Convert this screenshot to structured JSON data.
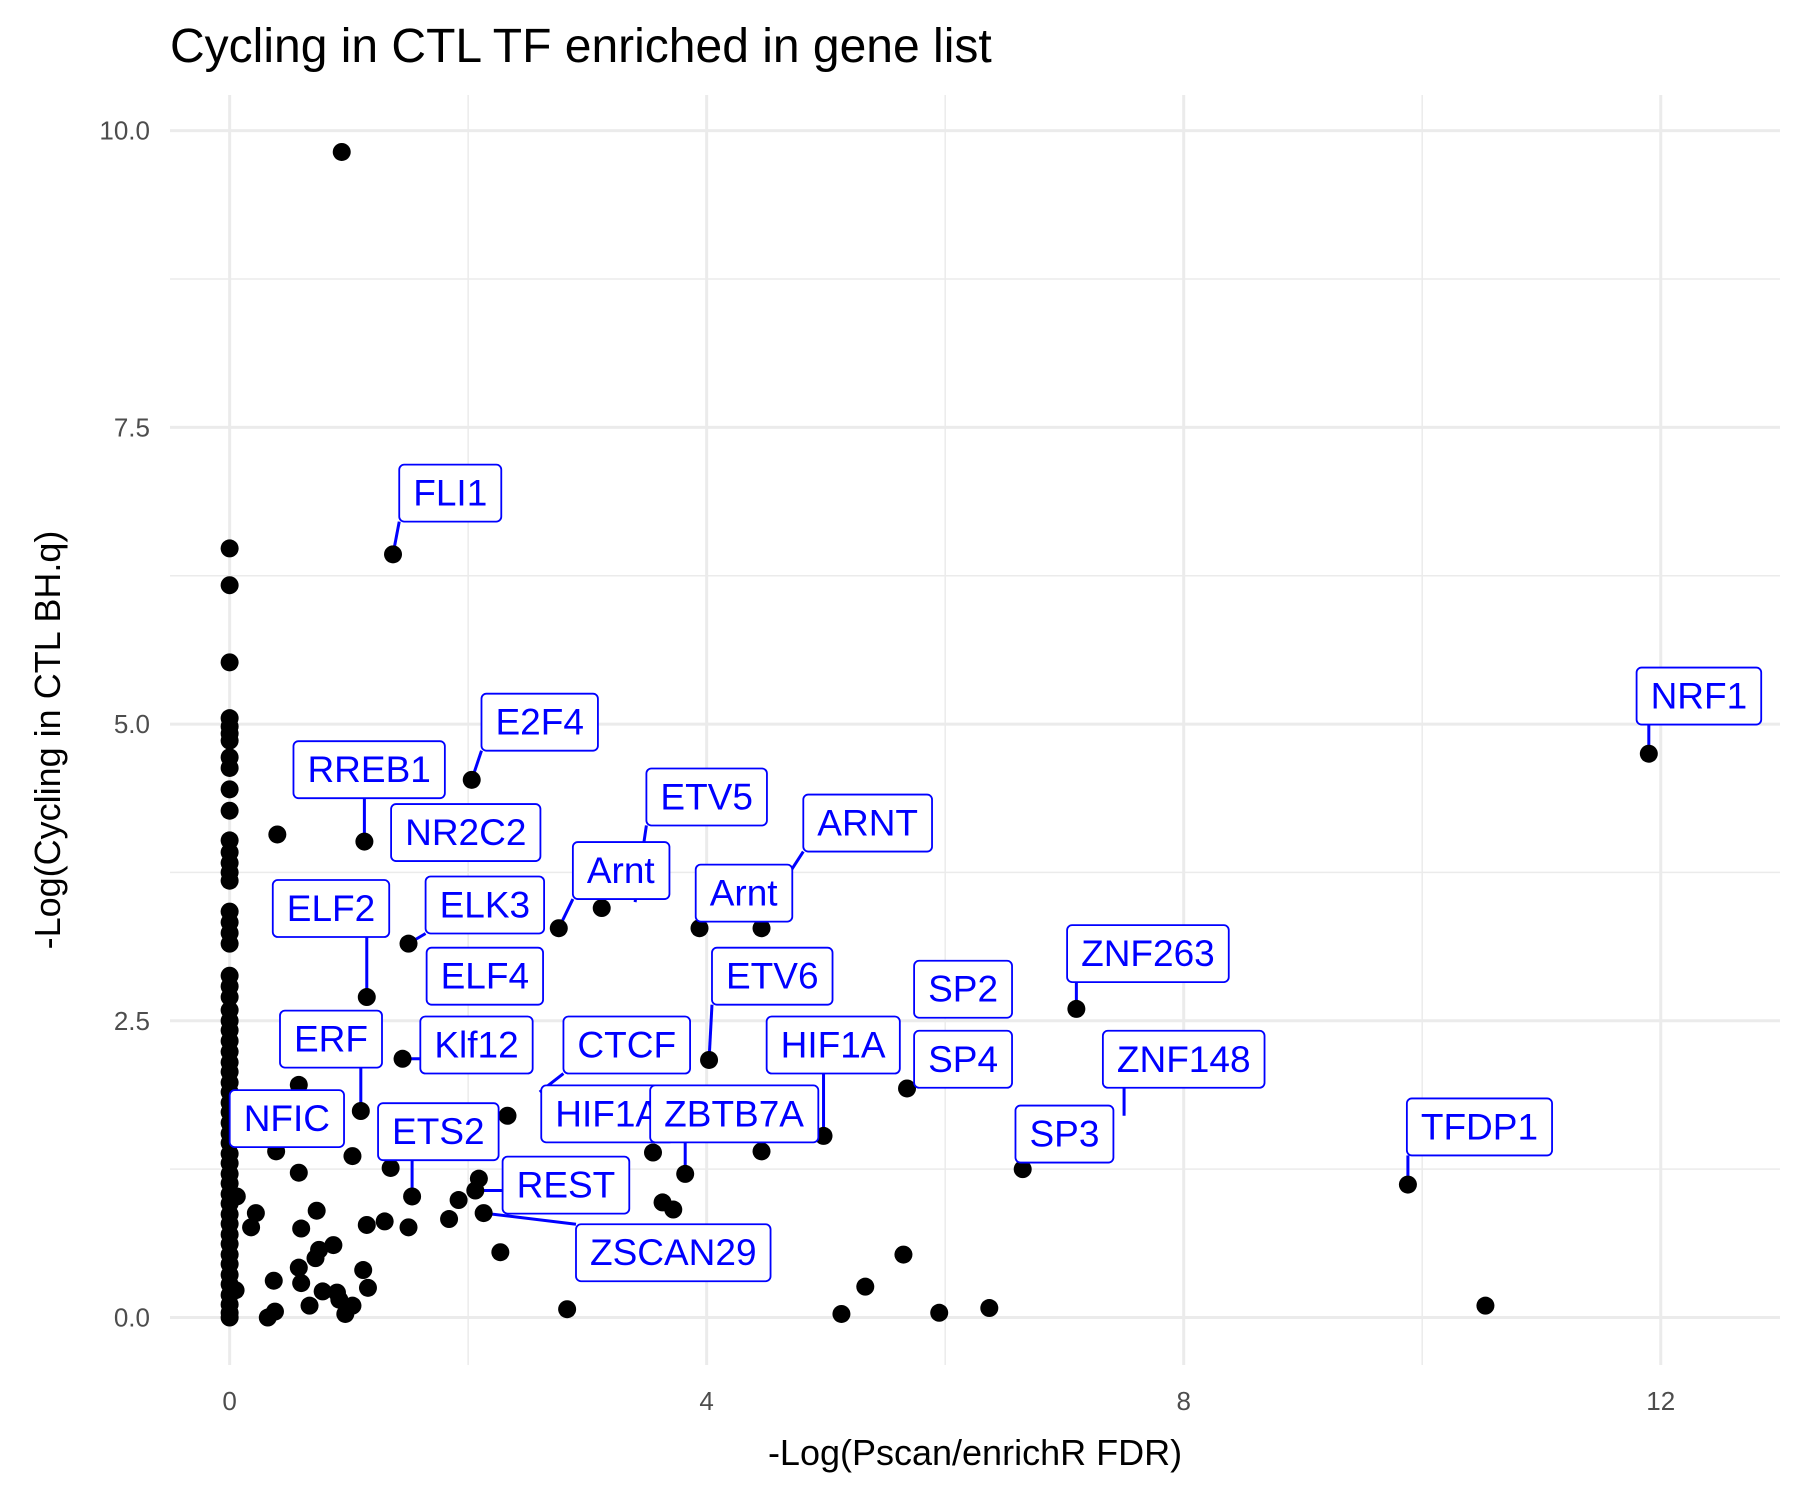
{
  "chart_data": {
    "type": "scatter",
    "title": "Cycling in CTL TF enriched in gene list",
    "xlabel": "-Log(Pscan/enrichR FDR)",
    "ylabel": "-Log(Cycling in CTL BH.q)",
    "xlim": [
      -0.5,
      13
    ],
    "ylim": [
      -0.4,
      10.3
    ],
    "x_ticks": [
      0,
      4,
      8,
      12
    ],
    "x_tick_labels": [
      "0",
      "4",
      "8",
      "12"
    ],
    "y_ticks": [
      0,
      2.5,
      5,
      7.5,
      10
    ],
    "y_tick_labels": [
      "0.0",
      "2.5",
      "5.0",
      "7.5",
      "10.0"
    ],
    "grid": true,
    "label_color": "#0000ff",
    "point_color": "#000000",
    "points": [
      {
        "x": 0.94,
        "y": 9.82
      },
      {
        "x": 0,
        "y": 6.48
      },
      {
        "x": 0,
        "y": 6.17
      },
      {
        "x": 0,
        "y": 5.52
      },
      {
        "x": 0,
        "y": 5.05
      },
      {
        "x": 0,
        "y": 4.98
      },
      {
        "x": 0,
        "y": 4.92
      },
      {
        "x": 0,
        "y": 4.86
      },
      {
        "x": 0,
        "y": 4.72
      },
      {
        "x": 0,
        "y": 4.63
      },
      {
        "x": 0,
        "y": 4.45
      },
      {
        "x": 0,
        "y": 4.27
      },
      {
        "x": 0,
        "y": 4.02
      },
      {
        "x": 0,
        "y": 3.92
      },
      {
        "x": 0,
        "y": 3.83
      },
      {
        "x": 0,
        "y": 3.75
      },
      {
        "x": 0,
        "y": 3.68
      },
      {
        "x": 0,
        "y": 3.42
      },
      {
        "x": 0,
        "y": 3.33
      },
      {
        "x": 0,
        "y": 3.24
      },
      {
        "x": 0,
        "y": 3.15
      },
      {
        "x": 0,
        "y": 2.88
      },
      {
        "x": 0,
        "y": 2.79
      },
      {
        "x": 0,
        "y": 2.7
      },
      {
        "x": 0,
        "y": 2.59
      },
      {
        "x": 0,
        "y": 2.5
      },
      {
        "x": 0,
        "y": 2.42
      },
      {
        "x": 0,
        "y": 2.33
      },
      {
        "x": 0,
        "y": 2.24
      },
      {
        "x": 0,
        "y": 2.15
      },
      {
        "x": 0,
        "y": 2.07
      },
      {
        "x": 0,
        "y": 1.98
      },
      {
        "x": 0,
        "y": 1.9
      },
      {
        "x": 0,
        "y": 1.81
      },
      {
        "x": 0,
        "y": 1.73
      },
      {
        "x": 0,
        "y": 1.64
      },
      {
        "x": 0,
        "y": 1.55
      },
      {
        "x": 0,
        "y": 1.47
      },
      {
        "x": 0,
        "y": 1.38
      },
      {
        "x": 0,
        "y": 1.3
      },
      {
        "x": 0,
        "y": 1.21
      },
      {
        "x": 0,
        "y": 1.13
      },
      {
        "x": 0,
        "y": 1.04
      },
      {
        "x": 0,
        "y": 0.96
      },
      {
        "x": 0,
        "y": 0.87
      },
      {
        "x": 0,
        "y": 0.79
      },
      {
        "x": 0,
        "y": 0.7
      },
      {
        "x": 0,
        "y": 0.62
      },
      {
        "x": 0,
        "y": 0.53
      },
      {
        "x": 0,
        "y": 0.45
      },
      {
        "x": 0,
        "y": 0.36
      },
      {
        "x": 0,
        "y": 0.28
      },
      {
        "x": 0,
        "y": 0.19
      },
      {
        "x": 0,
        "y": 0.11
      },
      {
        "x": 0,
        "y": 0.04
      },
      {
        "x": 0,
        "y": 0.0
      },
      {
        "x": 0.06,
        "y": 1.02
      },
      {
        "x": 0.05,
        "y": 0.23
      },
      {
        "x": 0.4,
        "y": 4.07
      },
      {
        "x": 0.39,
        "y": 1.4
      },
      {
        "x": 0.22,
        "y": 0.88
      },
      {
        "x": 0.18,
        "y": 0.76
      },
      {
        "x": 0.58,
        "y": 1.96
      },
      {
        "x": 0.58,
        "y": 1.22
      },
      {
        "x": 0.6,
        "y": 0.75
      },
      {
        "x": 0.73,
        "y": 0.9
      },
      {
        "x": 0.75,
        "y": 0.57
      },
      {
        "x": 0.72,
        "y": 0.5
      },
      {
        "x": 0.58,
        "y": 0.42
      },
      {
        "x": 0.6,
        "y": 0.29
      },
      {
        "x": 0.37,
        "y": 0.31
      },
      {
        "x": 0.87,
        "y": 0.61
      },
      {
        "x": 0.78,
        "y": 0.22
      },
      {
        "x": 0.67,
        "y": 0.1
      },
      {
        "x": 0.9,
        "y": 0.21
      },
      {
        "x": 0.92,
        "y": 0.15
      },
      {
        "x": 1.03,
        "y": 0.1
      },
      {
        "x": 0.97,
        "y": 0.03
      },
      {
        "x": 0.32,
        "y": 0.0
      },
      {
        "x": 0.38,
        "y": 0.05
      },
      {
        "x": 1.12,
        "y": 0.4
      },
      {
        "x": 1.16,
        "y": 0.25
      },
      {
        "x": 1.15,
        "y": 0.78
      },
      {
        "x": 1.3,
        "y": 0.81
      },
      {
        "x": 1.03,
        "y": 1.36
      },
      {
        "x": 1.35,
        "y": 1.26
      },
      {
        "x": 1.5,
        "y": 0.76
      },
      {
        "x": 1.53,
        "y": 1.02
      },
      {
        "x": 1.84,
        "y": 0.83
      },
      {
        "x": 1.92,
        "y": 0.99
      },
      {
        "x": 2.09,
        "y": 1.17
      },
      {
        "x": 2.06,
        "y": 1.07
      },
      {
        "x": 2.13,
        "y": 0.88
      },
      {
        "x": 2.27,
        "y": 0.55
      },
      {
        "x": 2.83,
        "y": 0.07
      },
      {
        "x": 1.45,
        "y": 2.18
      },
      {
        "x": 1.1,
        "y": 1.74
      },
      {
        "x": 2.33,
        "y": 1.7
      },
      {
        "x": 3.63,
        "y": 0.97
      },
      {
        "x": 3.72,
        "y": 0.91
      },
      {
        "x": 3.55,
        "y": 1.39
      },
      {
        "x": 5.13,
        "y": 0.03
      },
      {
        "x": 5.33,
        "y": 0.26
      },
      {
        "x": 5.65,
        "y": 0.53
      },
      {
        "x": 5.95,
        "y": 0.04
      },
      {
        "x": 6.37,
        "y": 0.08
      },
      {
        "x": 10.53,
        "y": 0.1
      },
      {
        "x": 1.37,
        "y": 6.43
      },
      {
        "x": 2.03,
        "y": 4.53
      },
      {
        "x": 1.13,
        "y": 4.01
      },
      {
        "x": 1.5,
        "y": 3.15
      },
      {
        "x": 1.15,
        "y": 2.7
      },
      {
        "x": 2.76,
        "y": 3.28
      },
      {
        "x": 3.12,
        "y": 3.45
      },
      {
        "x": 3.94,
        "y": 3.28
      },
      {
        "x": 4.46,
        "y": 3.28
      },
      {
        "x": 4.02,
        "y": 2.17
      },
      {
        "x": 4.46,
        "y": 1.4
      },
      {
        "x": 4.98,
        "y": 1.53
      },
      {
        "x": 3.82,
        "y": 1.21
      },
      {
        "x": 5.68,
        "y": 1.93
      },
      {
        "x": 7.1,
        "y": 2.6
      },
      {
        "x": 6.65,
        "y": 1.25
      },
      {
        "x": 9.88,
        "y": 1.12
      },
      {
        "x": 11.9,
        "y": 4.75
      }
    ],
    "labels": [
      {
        "text": "FLI1",
        "x": 1.37,
        "y": 6.43,
        "lx": 1.85,
        "ly": 6.95
      },
      {
        "text": "E2F4",
        "x": 2.03,
        "y": 4.53,
        "lx": 2.6,
        "ly": 5.02
      },
      {
        "text": "RREB1",
        "x": 1.13,
        "y": 4.01,
        "lx": 1.17,
        "ly": 4.62
      },
      {
        "text": "NR2C2",
        "x": 1.87,
        "y": 3.81,
        "lx": 1.98,
        "ly": 4.09
      },
      {
        "text": "ETV5",
        "x": 3.4,
        "y": 3.5,
        "lx": 4.0,
        "ly": 4.39
      },
      {
        "text": "ARNT",
        "x": 4.6,
        "y": 3.6,
        "lx": 5.35,
        "ly": 4.17
      },
      {
        "text": "Arnt",
        "x": 2.76,
        "y": 3.28,
        "lx": 3.28,
        "ly": 3.77
      },
      {
        "text": "Arnt",
        "x": 3.94,
        "y": 3.28,
        "lx": 4.31,
        "ly": 3.58
      },
      {
        "text": "ELF2",
        "x": 1.15,
        "y": 2.7,
        "lx": 0.85,
        "ly": 3.45
      },
      {
        "text": "ELK3",
        "x": 1.5,
        "y": 3.15,
        "lx": 2.14,
        "ly": 3.48
      },
      {
        "text": "ELF4",
        "x": 1.8,
        "y": 2.55,
        "lx": 2.14,
        "ly": 2.88
      },
      {
        "text": "ETV6",
        "x": 4.02,
        "y": 2.17,
        "lx": 4.55,
        "ly": 2.88
      },
      {
        "text": "SP2",
        "x": 5.68,
        "y": 2.6,
        "lx": 6.15,
        "ly": 2.77
      },
      {
        "text": "ZNF263",
        "x": 7.1,
        "y": 2.6,
        "lx": 7.7,
        "ly": 3.07
      },
      {
        "text": "ERF",
        "x": 1.1,
        "y": 1.74,
        "lx": 0.85,
        "ly": 2.35
      },
      {
        "text": "Klf12",
        "x": 1.45,
        "y": 2.18,
        "lx": 2.07,
        "ly": 2.3
      },
      {
        "text": "CTCF",
        "x": 2.6,
        "y": 1.9,
        "lx": 3.33,
        "ly": 2.3
      },
      {
        "text": "HIF1A",
        "x": 4.98,
        "y": 1.53,
        "lx": 5.06,
        "ly": 2.3
      },
      {
        "text": "SP4",
        "x": 5.68,
        "y": 1.93,
        "lx": 6.15,
        "ly": 2.18
      },
      {
        "text": "ZNF148",
        "x": 7.5,
        "y": 1.7,
        "lx": 8.0,
        "ly": 2.18
      },
      {
        "text": "NFIC",
        "x": 0.5,
        "y": 1.6,
        "lx": 0.48,
        "ly": 1.68
      },
      {
        "text": "HIF1A",
        "x": 2.6,
        "y": 1.62,
        "lx": 3.17,
        "ly": 1.72
      },
      {
        "text": "ZBTB7A",
        "x": 3.82,
        "y": 1.21,
        "lx": 4.23,
        "ly": 1.72
      },
      {
        "text": "ETS2",
        "x": 1.53,
        "y": 1.02,
        "lx": 1.75,
        "ly": 1.57
      },
      {
        "text": "SP3",
        "x": 6.65,
        "y": 1.25,
        "lx": 7.0,
        "ly": 1.55
      },
      {
        "text": "TFDP1",
        "x": 9.88,
        "y": 1.12,
        "lx": 10.48,
        "ly": 1.61
      },
      {
        "text": "NRF1",
        "x": 11.9,
        "y": 4.75,
        "lx": 12.32,
        "ly": 5.24
      },
      {
        "text": "REST",
        "x": 2.06,
        "y": 1.07,
        "lx": 2.82,
        "ly": 1.12
      },
      {
        "text": "ZSCAN29",
        "x": 2.13,
        "y": 0.88,
        "lx": 3.72,
        "ly": 0.55
      }
    ]
  }
}
